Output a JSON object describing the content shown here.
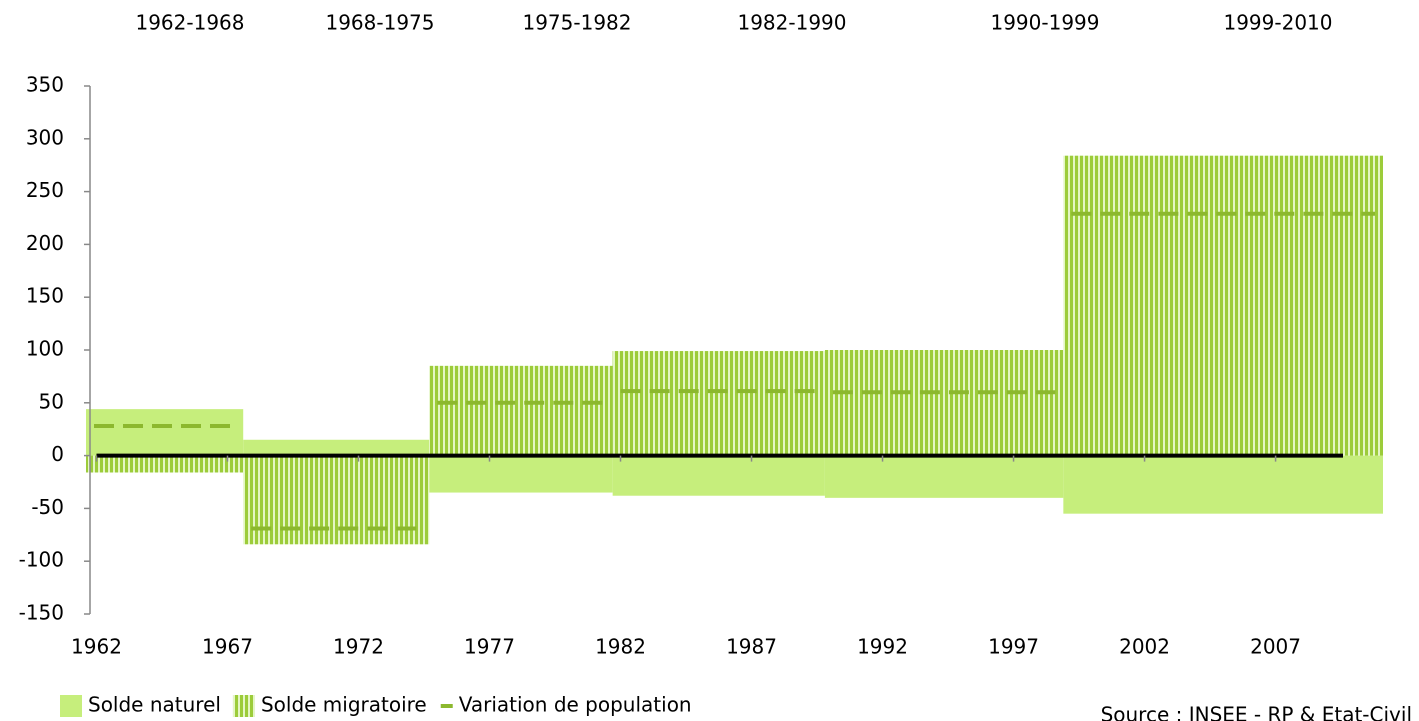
{
  "chart_data": {
    "type": "period-bar",
    "categories": [
      "1962-1968",
      "1968-1975",
      "1975-1982",
      "1982-1990",
      "1990-1999",
      "1999-2010"
    ],
    "bins": [
      1961.6,
      1967.6,
      1974.7,
      1981.7,
      1989.8,
      1998.9,
      2011.1
    ],
    "series": [
      {
        "name": "Solde naturel",
        "color": "#c6ee7c",
        "style": "solid",
        "values": [
          44,
          15,
          -35,
          -38,
          -40,
          -55
        ]
      },
      {
        "name": "Solde migratoire",
        "color": "#9ccc3a",
        "style": "hatch",
        "values": [
          -16,
          -84,
          85,
          99,
          100,
          284
        ]
      },
      {
        "name": "Variation de population",
        "color": "#8cb82e",
        "style": "dash",
        "values": [
          28,
          -69,
          50,
          61,
          60,
          229
        ]
      }
    ],
    "xlim": [
      1961.6,
      2011.1
    ],
    "xticks": [
      1962,
      1967,
      1972,
      1977,
      1982,
      1987,
      1992,
      1997,
      2002,
      2007
    ],
    "ylim": [
      -150,
      350
    ],
    "yticks": [
      -150,
      -100,
      -50,
      0,
      50,
      100,
      150,
      200,
      250,
      300,
      350
    ],
    "source": "Source : INSEE - RP & Etat-Civil"
  }
}
